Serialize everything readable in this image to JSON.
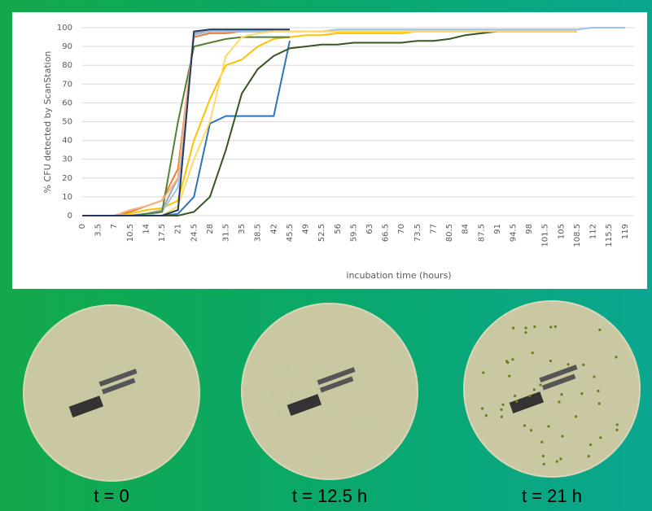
{
  "chart_data": {
    "type": "line",
    "y_label": "% CFU detected by ScanStation",
    "x_label": "incubation time (hours)",
    "x": [
      0,
      3.5,
      7,
      10.5,
      14,
      17.5,
      21,
      24.5,
      28,
      31.5,
      35,
      38.5,
      42,
      45.5,
      49,
      52.5,
      56,
      59.5,
      63,
      66.5,
      70,
      73.5,
      77,
      80.5,
      84,
      87.5,
      91,
      94.5,
      98,
      101.5,
      105,
      108.5,
      112,
      115.5,
      119
    ],
    "xlim": [
      0,
      121
    ],
    "ylim": [
      0,
      100
    ],
    "yticks": [
      0,
      10,
      20,
      30,
      40,
      50,
      60,
      70,
      80,
      90,
      100
    ],
    "grid": true,
    "series": [
      {
        "color": "#2e75b6",
        "values": [
          0,
          0,
          0,
          0,
          0,
          0,
          1,
          10,
          49,
          53,
          53,
          53,
          53,
          93,
          null,
          null,
          null,
          null,
          null,
          null,
          null,
          null,
          null,
          null,
          null,
          null,
          null,
          null,
          null,
          null,
          null,
          null,
          null,
          null,
          null
        ]
      },
      {
        "color": "#ed7d31",
        "values": [
          0,
          0,
          0,
          2,
          5,
          8,
          25,
          95,
          97,
          97,
          98,
          98,
          98,
          null,
          null,
          null,
          null,
          null,
          null,
          null,
          null,
          null,
          null,
          null,
          null,
          null,
          null,
          null,
          null,
          null,
          null,
          null,
          null,
          null,
          null
        ]
      },
      {
        "color": "#a5a5a5",
        "values": [
          0,
          0,
          0,
          0,
          1,
          3,
          20,
          97,
          98,
          98,
          98,
          98,
          98,
          98,
          98,
          98,
          98,
          98,
          98,
          98,
          98,
          98,
          98,
          98,
          98,
          98,
          98,
          98,
          98,
          98,
          98,
          98,
          null,
          null,
          null
        ]
      },
      {
        "color": "#ffc000",
        "values": [
          0,
          0,
          0,
          1,
          3,
          4,
          8,
          40,
          62,
          80,
          83,
          90,
          94,
          95,
          96,
          96,
          97,
          97,
          97,
          97,
          97,
          98,
          98,
          98,
          98,
          98,
          98,
          98,
          98,
          98,
          98,
          98,
          null,
          null,
          null
        ]
      },
      {
        "color": "#9dc3e6",
        "values": [
          0,
          0,
          0,
          0,
          0,
          2,
          15,
          96,
          98,
          98,
          98,
          98,
          98,
          98,
          98,
          98,
          99,
          99,
          99,
          99,
          99,
          99,
          99,
          99,
          99,
          99,
          99,
          99,
          99,
          99,
          99,
          99,
          100,
          100,
          100
        ]
      },
      {
        "color": "#548235",
        "values": [
          0,
          0,
          0,
          0,
          1,
          2,
          50,
          90,
          92,
          94,
          95,
          95,
          95,
          95,
          null,
          null,
          null,
          null,
          null,
          null,
          null,
          null,
          null,
          null,
          null,
          null,
          null,
          null,
          null,
          null,
          null,
          null,
          null,
          null,
          null
        ]
      },
      {
        "color": "#375623",
        "values": [
          0,
          0,
          0,
          0,
          0,
          0,
          0,
          2,
          10,
          35,
          65,
          78,
          85,
          89,
          90,
          91,
          91,
          92,
          92,
          92,
          92,
          93,
          93,
          94,
          96,
          97,
          98,
          98,
          98,
          98,
          98,
          98,
          null,
          null,
          null
        ]
      },
      {
        "color": "#ffd966",
        "values": [
          0,
          0,
          0,
          0,
          0,
          0,
          5,
          30,
          50,
          85,
          95,
          97,
          98,
          98,
          98,
          98,
          98,
          98,
          98,
          98,
          98,
          98,
          98,
          98,
          98,
          98,
          98,
          98,
          98,
          98,
          98,
          98,
          null,
          null,
          null
        ]
      },
      {
        "color": "#f4b183",
        "values": [
          0,
          0,
          0,
          3,
          5,
          8,
          20,
          98,
          99,
          99,
          99,
          99,
          99,
          null,
          null,
          null,
          null,
          null,
          null,
          null,
          null,
          null,
          null,
          null,
          null,
          null,
          null,
          null,
          null,
          null,
          null,
          null,
          null,
          null,
          null
        ]
      },
      {
        "color": "#1f3864",
        "values": [
          0,
          0,
          0,
          0,
          0,
          0,
          3,
          98,
          99,
          99,
          99,
          99,
          99,
          99,
          null,
          null,
          null,
          null,
          null,
          null,
          null,
          null,
          null,
          null,
          null,
          null,
          null,
          null,
          null,
          null,
          null,
          null,
          null,
          null,
          null
        ]
      }
    ]
  },
  "captions": [
    "t = 0",
    "t = 12.5 h",
    "t = 21 h"
  ]
}
